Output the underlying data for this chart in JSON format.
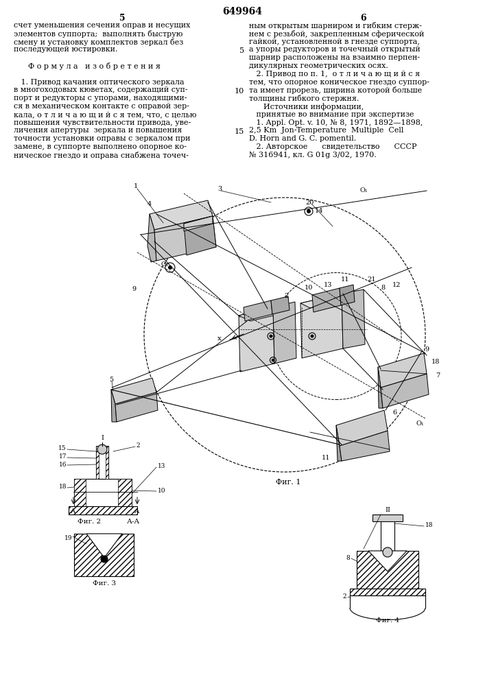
{
  "title": "649964",
  "page_left": "5",
  "page_right": "6",
  "bg_color": "#ffffff",
  "font_size_body": 8.0,
  "left_col_lines": [
    "счет уменьшения сечения оправ и несущих",
    "элементов суппорта;  выполнять быструю",
    "смену и установку комплектов зеркал без",
    "последующей юстировки.",
    "",
    "      Ф о р м у л а   и з о б р е т е н и я",
    "",
    "   1. Привод качания оптического зеркала",
    "в многоходовых кюветах, содержащий суп-",
    "порт и редукторы с упорами, находящими-",
    "ся в механическом контакте с оправой зер-",
    "кала, о т л и ч а ю щ и й с я тем, что, с целью",
    "повышения чувствительности привода, уве-",
    "личения апертуры  зеркала и повышения",
    "точности установки оправы с зеркалом при",
    "замене, в суппорте выполнено опорное ко-",
    "ническое гнездо и оправа снабжена точеч-"
  ],
  "right_col_lines": [
    "ным открытым шарниром и гибким стерж-",
    "нем с резьбой, закрепленным сферической",
    "гайкой, установленной в гнезде суппорта,",
    "а упоры редукторов и точечный открытый",
    "шарнир расположены на взаимно перпен-",
    "дикулярных геометрических осях.",
    "   2. Привод по п. 1,  о т л и ч а ю щ и й с я",
    "тем, что опорное коническое гнездо суппор-",
    "та имеет прорезь, ширина которой больше",
    "толщины гибкого стержня.",
    "      Источники информации,",
    "   принятые во внимание при экспертизе",
    "   1. Appl. Opt. v. 10, № 8, 1971, 1892—1898,",
    "2,5 Km  Jon-Temperature  Multiple  Cell",
    "D. Horn and G. C. pomentil.",
    "   2. Авторское      свидетельство      СССР",
    "№ 316941, кл. G 01g 3/02, 1970."
  ],
  "fig1_label": "Фиг. 1",
  "fig2_label": "Фиг. 2",
  "fig3_label": "Фиг. 3",
  "fig4_label": "Фиг. 4",
  "section_label": "А-А"
}
